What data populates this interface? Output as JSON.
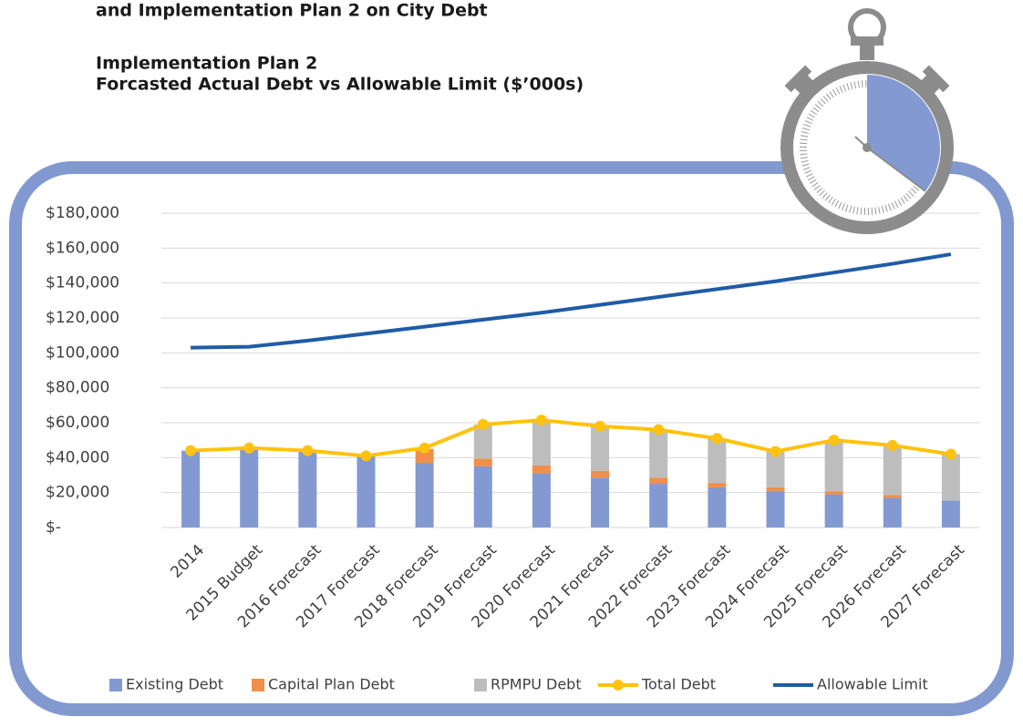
{
  "chart_data": {
    "type": "bar",
    "stacked": true,
    "heading": "and Implementation Plan 2 on City Debt",
    "title": "Implementation Plan 2",
    "subtitle": "Forcasted Actual Debt vs Allowable Limit ($’000s)",
    "categories": [
      "2014",
      "2015 Budget",
      "2016 Forecast",
      "2017 Forecast",
      "2018 Forecast",
      "2019 Forecast",
      "2020 Forecast",
      "2021 Forecast",
      "2022 Forecast",
      "2023 Forecast",
      "2024 Forecast",
      "2025 Forecast",
      "2026 Forecast",
      "2027 Forecast"
    ],
    "series": [
      {
        "name": "Existing Debt",
        "type": "bar",
        "color": "#8399d1",
        "values": [
          44000,
          45500,
          44000,
          41000,
          37000,
          35000,
          31000,
          28500,
          25000,
          23000,
          21000,
          19000,
          17000,
          15500
        ]
      },
      {
        "name": "Capital Plan Debt",
        "type": "bar",
        "color": "#f08f4a",
        "values": [
          0,
          0,
          0,
          0,
          8000,
          4500,
          4500,
          4000,
          3500,
          2500,
          2000,
          1800,
          1500,
          0
        ]
      },
      {
        "name": "RPMPU Debt",
        "type": "bar",
        "color": "#bdbdbd",
        "values": [
          0,
          0,
          0,
          0,
          0,
          19500,
          26000,
          25500,
          27500,
          25500,
          20500,
          29000,
          28500,
          26500
        ]
      },
      {
        "name": "Total Debt",
        "type": "line",
        "color": "#ffc20e",
        "values": [
          44000,
          45500,
          44000,
          41000,
          45500,
          59000,
          61500,
          58000,
          56000,
          51000,
          43500,
          50000,
          47000,
          42000
        ]
      },
      {
        "name": "Allowable Limit",
        "type": "line",
        "color": "#1f5ca6",
        "values": [
          103000,
          103500,
          107000,
          111000,
          115000,
          119000,
          123000,
          127500,
          132000,
          136500,
          141000,
          146000,
          151000,
          156500
        ]
      }
    ],
    "ylim": [
      0,
      180000
    ],
    "yticks": [
      {
        "value": 0,
        "label": "$-"
      },
      {
        "value": 20000,
        "label": "$20,000"
      },
      {
        "value": 40000,
        "label": "$40,000"
      },
      {
        "value": 60000,
        "label": "$60,000"
      },
      {
        "value": 80000,
        "label": "$80,000"
      },
      {
        "value": 100000,
        "label": "$100,000"
      },
      {
        "value": 120000,
        "label": "$120,000"
      },
      {
        "value": 140000,
        "label": "$140,000"
      },
      {
        "value": 160000,
        "label": "$160,000"
      },
      {
        "value": 180000,
        "label": "$180,000"
      }
    ],
    "grid": true,
    "legend": "bottom"
  }
}
